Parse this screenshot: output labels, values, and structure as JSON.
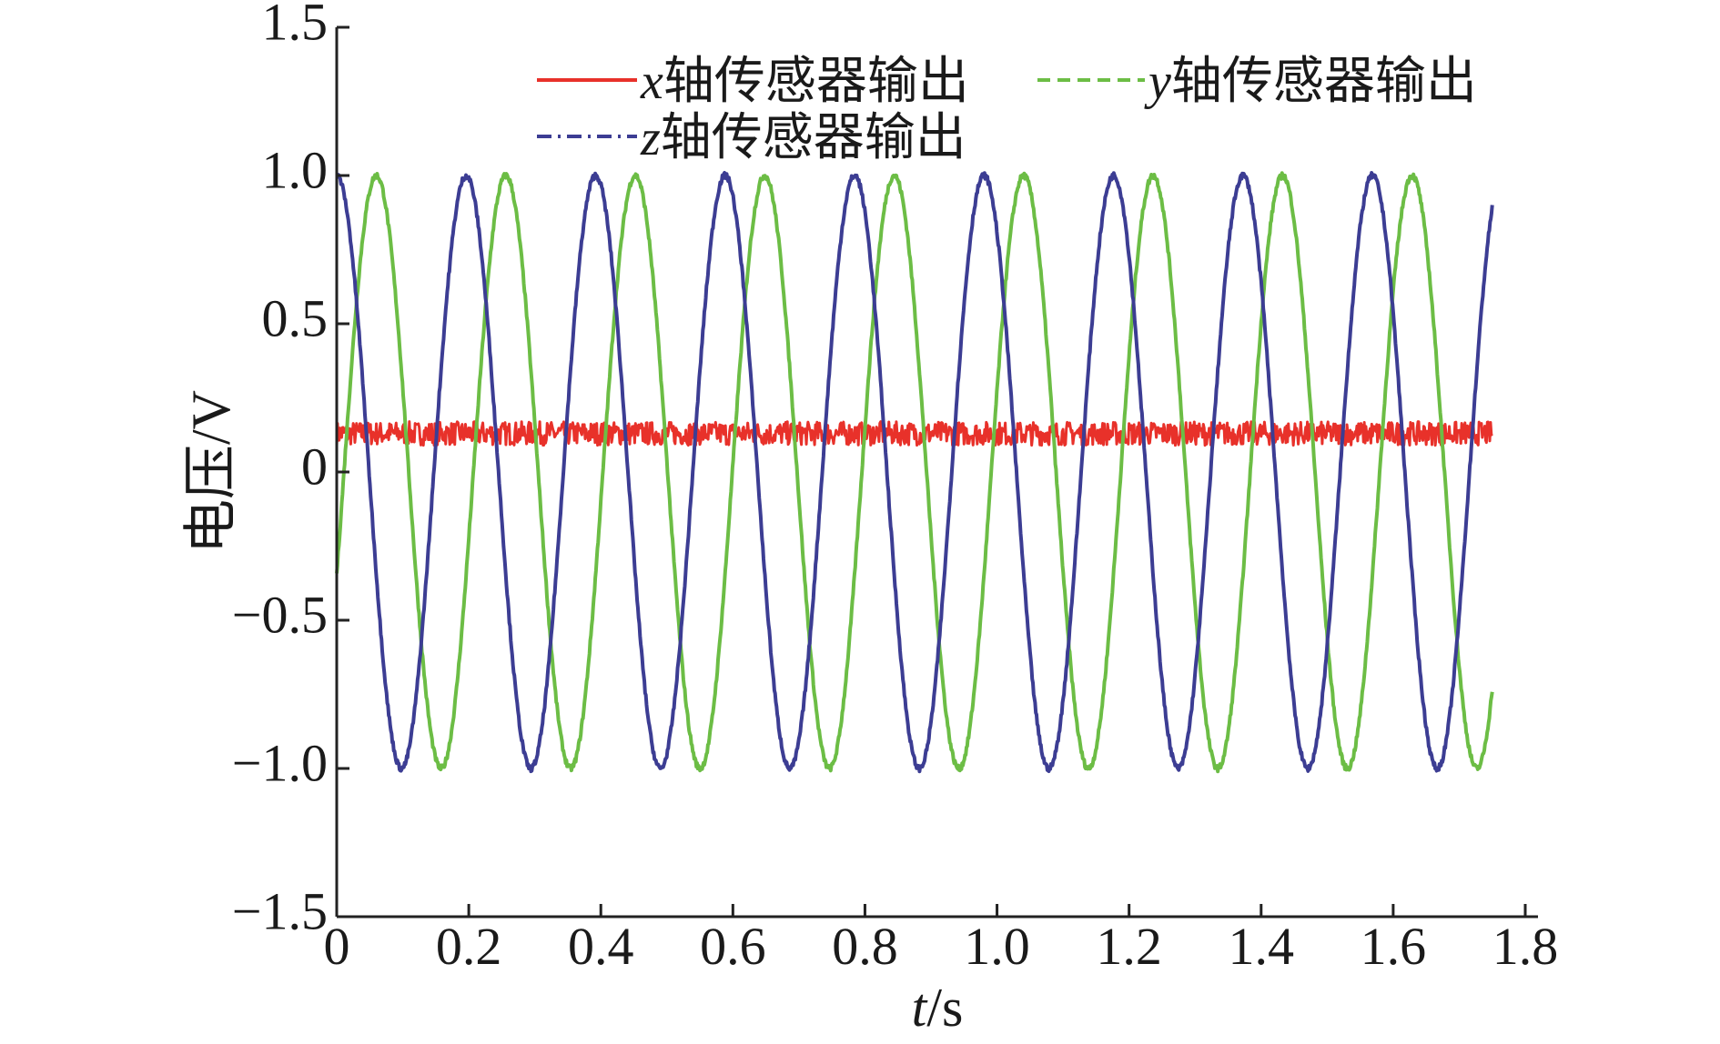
{
  "chart_data": {
    "type": "line",
    "title": "",
    "xlabel_var": "t",
    "xlabel_unit": "/s",
    "ylabel": "电压/V",
    "xlim": [
      0,
      1.8
    ],
    "ylim": [
      -1.5,
      1.5
    ],
    "xticks": [
      "0",
      "0.2",
      "0.4",
      "0.6",
      "0.8",
      "1.0",
      "1.2",
      "1.4",
      "1.6",
      "1.8"
    ],
    "yticks": [
      "1.5",
      "1.0",
      "0.5",
      "0",
      "−0.5",
      "−1.0",
      "−1.5"
    ],
    "grid": false,
    "legend_position": "top-right",
    "x_end": 1.75,
    "series": [
      {
        "name_var": "x",
        "name_suffix": "轴传感器输出",
        "color": "#e8312a",
        "dash": "solid",
        "form": "noisy-constant",
        "mean": 0.13,
        "noise_amplitude": 0.04
      },
      {
        "name_var": "y",
        "name_suffix": "轴传感器输出",
        "color": "#6cbd45",
        "dash": "dashed",
        "form": "sine",
        "amplitude": 1.0,
        "frequency_hz": 5.1,
        "peaks_t": [
          0.06,
          0.255,
          0.45,
          0.64,
          0.83,
          1.02,
          1.215,
          1.41,
          1.6
        ],
        "troughs_t": [
          0.16,
          0.355,
          0.545,
          0.735,
          0.925,
          1.115,
          1.31,
          1.505,
          1.695
        ]
      },
      {
        "name_var": "z",
        "name_suffix": "轴传感器输出",
        "color": "#3c3d93",
        "dash": "dash-dot",
        "form": "sine",
        "amplitude": 1.0,
        "frequency_hz": 5.1,
        "peaks_t": [
          0.0,
          0.2,
          0.39,
          0.585,
          0.775,
          0.965,
          1.16,
          1.355,
          1.545,
          1.74
        ],
        "troughs_t": [
          0.105,
          0.295,
          0.49,
          0.68,
          0.87,
          1.06,
          1.255,
          1.45,
          1.64
        ]
      }
    ]
  }
}
